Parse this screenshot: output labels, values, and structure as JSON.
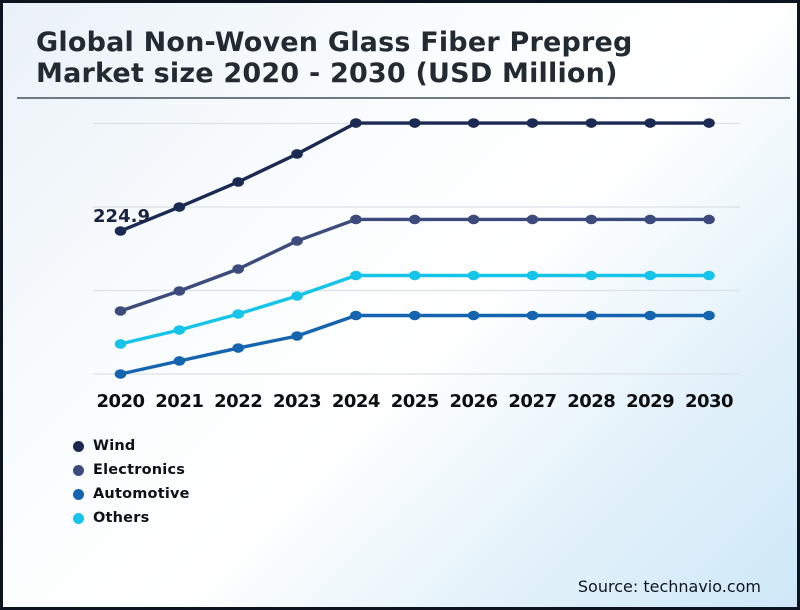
{
  "header": {
    "title_lines": [
      "Global Non-Woven Glass Fiber Prepreg",
      "Market size 2020 - 2030 (USD Million)"
    ]
  },
  "chart_data": {
    "type": "line",
    "title": "Global Non-Woven Glass Fiber Prepreg Market size 2020 - 2030 (USD Million)",
    "x": [
      "2020",
      "2021",
      "2022",
      "2023",
      "2024",
      "2025",
      "2026",
      "2027",
      "2028",
      "2029",
      "2030"
    ],
    "xlabel": "",
    "ylabel": "USD Million",
    "y_axis_labels_visible": false,
    "grid": "horizontal",
    "ylim": [
      40,
      370
    ],
    "legend_position": "bottom-left",
    "series": [
      {
        "name": "Wind",
        "color": "#1b2a52",
        "values": [
          224.9,
          253.8,
          284.0,
          317.7,
          355.0,
          355.0,
          355.0,
          355.0,
          355.0,
          355.0,
          355.0
        ]
      },
      {
        "name": "Electronics",
        "color": "#3c4b7c",
        "values": [
          128.5,
          152.6,
          179.1,
          212.9,
          238.8,
          238.8,
          238.8,
          238.8,
          238.8,
          238.8,
          238.8
        ]
      },
      {
        "name": "Automotive",
        "color": "#1564af",
        "values": [
          52.6,
          68.3,
          83.9,
          98.4,
          123.1,
          123.1,
          123.1,
          123.1,
          123.1,
          123.1,
          123.1
        ]
      },
      {
        "name": "Others",
        "color": "#16c4e9",
        "values": [
          88.8,
          105.6,
          124.9,
          146.6,
          171.3,
          171.3,
          171.3,
          171.3,
          171.3,
          171.3,
          171.3
        ]
      }
    ],
    "annotations": [
      {
        "series": "Wind",
        "x": "2020",
        "text": "224.9"
      }
    ]
  },
  "footer": {
    "source": "Source: technavio.com"
  }
}
